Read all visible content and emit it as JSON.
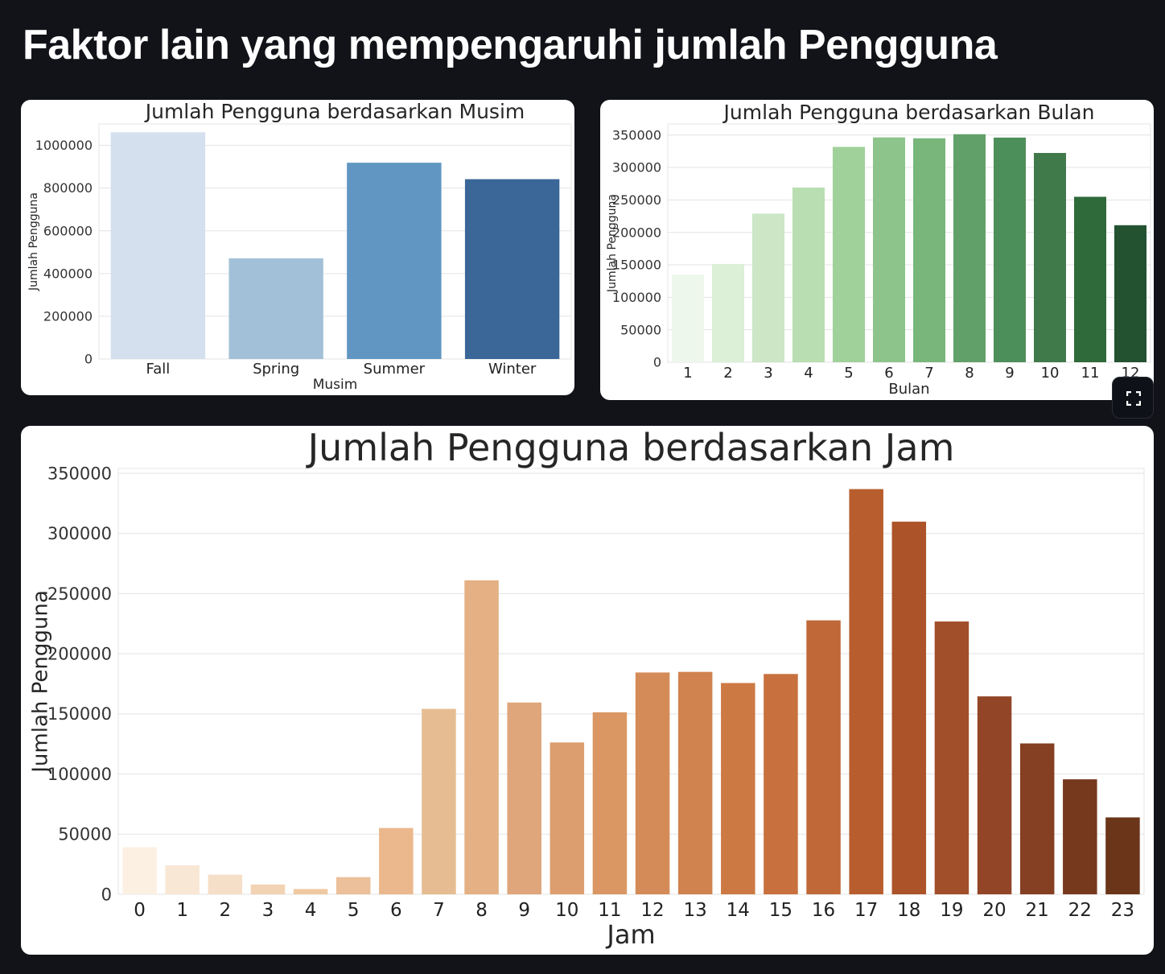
{
  "page": {
    "title": "Faktor lain yang mempengaruhi jumlah Pengguna"
  },
  "charts": [
    {
      "id": "musim",
      "type": "bar",
      "title": "Jumlah Pengguna berdasarkan Musim",
      "xlabel": "Musim",
      "ylabel": "Jumlah Pengguna",
      "categories": [
        "Fall",
        "Spring",
        "Summer",
        "Winter"
      ],
      "values": [
        1061129,
        471348,
        918589,
        841613
      ],
      "ylim": [
        0,
        1100000
      ],
      "yticks": [
        0,
        200000,
        400000,
        600000,
        800000,
        1000000
      ],
      "colors": [
        "#d5e0ee",
        "#a2c1d8",
        "#6096c1",
        "#3a6698"
      ],
      "grid": true
    },
    {
      "id": "bulan",
      "type": "bar",
      "title": "Jumlah Pengguna berdasarkan Bulan",
      "xlabel": "Bulan",
      "ylabel": "Jumlah Pengguna",
      "categories": [
        "1",
        "2",
        "3",
        "4",
        "5",
        "6",
        "7",
        "8",
        "9",
        "10",
        "11",
        "12"
      ],
      "values": [
        134933,
        151352,
        228920,
        269094,
        331686,
        346342,
        344948,
        351194,
        345991,
        322352,
        254831,
        211036
      ],
      "ylim": [
        0,
        367000
      ],
      "yticks": [
        0,
        50000,
        100000,
        150000,
        200000,
        250000,
        300000,
        350000
      ],
      "colors": [
        "#eef7ec",
        "#dcefd7",
        "#cce6c6",
        "#b9deb2",
        "#a0d19a",
        "#8cc48b",
        "#78b67c",
        "#62a06a",
        "#4d8f5a",
        "#407a4b",
        "#2e6a3a",
        "#235231"
      ],
      "grid": true
    },
    {
      "id": "jam",
      "type": "bar",
      "title": "Jumlah Pengguna berdasarkan Jam",
      "xlabel": "Jam",
      "ylabel": "Jumlah Pengguna",
      "categories": [
        "0",
        "1",
        "2",
        "3",
        "4",
        "5",
        "6",
        "7",
        "8",
        "9",
        "10",
        "11",
        "12",
        "13",
        "14",
        "15",
        "16",
        "17",
        "18",
        "19",
        "20",
        "21",
        "22",
        "23"
      ],
      "values": [
        39130,
        24164,
        16352,
        8174,
        4428,
        14261,
        55132,
        154171,
        261001,
        159438,
        126257,
        151320,
        184414,
        184919,
        175652,
        183149,
        227748,
        336860,
        309772,
        226789,
        164550,
        125445,
        95612,
        63941
      ],
      "ylim": [
        0,
        354000
      ],
      "yticks": [
        0,
        50000,
        100000,
        150000,
        200000,
        250000,
        300000,
        350000
      ],
      "colors": [
        "#fcf0e3",
        "#f9e7d6",
        "#f6dfc8",
        "#f2d3b4",
        "#efc9a2",
        "#ecc09a",
        "#eab88c",
        "#e6bd92",
        "#e4b084",
        "#dea67a",
        "#dc9e6f",
        "#da9764",
        "#d58b58",
        "#d1834f",
        "#cd7944",
        "#c8703e",
        "#c06837",
        "#b85e2e",
        "#ac532a",
        "#a14f2b",
        "#934627",
        "#853f22",
        "#77391e",
        "#6a3519"
      ],
      "grid": true
    }
  ]
}
